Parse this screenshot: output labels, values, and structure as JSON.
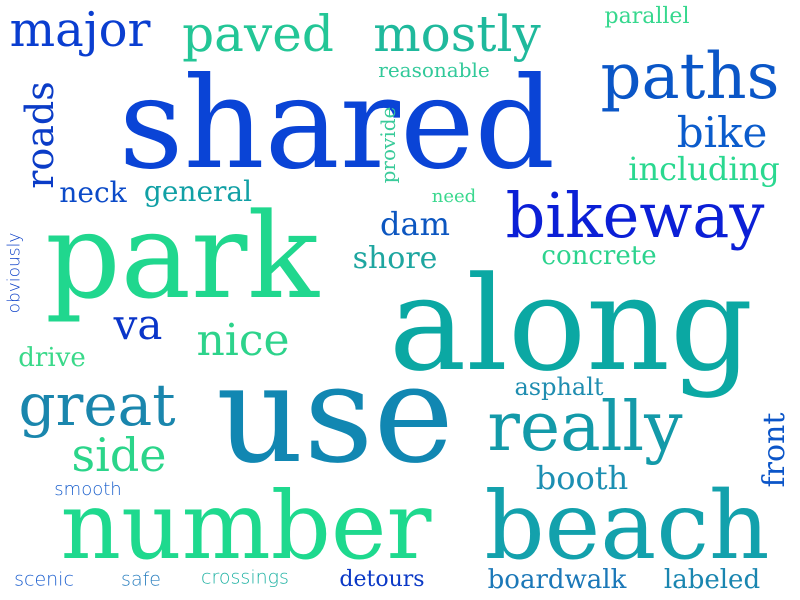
{
  "word_cloud": {
    "words": [
      {
        "text": "shared",
        "color": "#0a44d6"
      },
      {
        "text": "along",
        "color": "#0ba8a3"
      },
      {
        "text": "use",
        "color": "#1187b2"
      },
      {
        "text": "park",
        "color": "#20d78e"
      },
      {
        "text": "number",
        "color": "#1ed98e"
      },
      {
        "text": "beach",
        "color": "#13a1ac"
      },
      {
        "text": "bikeway",
        "color": "#0b1fd6"
      },
      {
        "text": "paths",
        "color": "#0a56c7"
      },
      {
        "text": "really",
        "color": "#139aa9"
      },
      {
        "text": "great",
        "color": "#1a86ad"
      },
      {
        "text": "paved",
        "color": "#23c696"
      },
      {
        "text": "mostly",
        "color": "#1fb99c"
      },
      {
        "text": "major",
        "color": "#0a3ed0"
      },
      {
        "text": "bike",
        "color": "#0b5ccc"
      },
      {
        "text": "side",
        "color": "#2bd58a"
      },
      {
        "text": "nice",
        "color": "#2dd38b"
      },
      {
        "text": "va",
        "color": "#0a35c9"
      },
      {
        "text": "roads",
        "color": "#0b3cc7"
      },
      {
        "text": "dam",
        "color": "#0c56c0"
      },
      {
        "text": "booth",
        "color": "#1c8fb2"
      },
      {
        "text": "including",
        "color": "#2ad890"
      },
      {
        "text": "shore",
        "color": "#1ea6a0"
      },
      {
        "text": "concrete",
        "color": "#2cd38e"
      },
      {
        "text": "neck",
        "color": "#0b4ac8"
      },
      {
        "text": "general",
        "color": "#11a0a5"
      },
      {
        "text": "boardwalk",
        "color": "#1b78b8"
      },
      {
        "text": "labeled",
        "color": "#1a86b0"
      },
      {
        "text": "front",
        "color": "#0b55c8"
      },
      {
        "text": "asphalt",
        "color": "#1f8db0"
      },
      {
        "text": "drive",
        "color": "#3ad98a"
      },
      {
        "text": "detours",
        "color": "#0a38c6"
      },
      {
        "text": "reasonable",
        "color": "#32c99a"
      },
      {
        "text": "parallel",
        "color": "#36d88e"
      },
      {
        "text": "provide",
        "color": "#3acb9a"
      },
      {
        "text": "need",
        "color": "#3ad88e"
      },
      {
        "text": "smooth",
        "color": "#1a5fcc"
      },
      {
        "text": "scenic",
        "color": "#1c5fcf"
      },
      {
        "text": "safe",
        "color": "#2a7fbf"
      },
      {
        "text": "crossings",
        "color": "#20b2a3"
      },
      {
        "text": "obviously",
        "color": "#0b3fc7"
      }
    ]
  }
}
